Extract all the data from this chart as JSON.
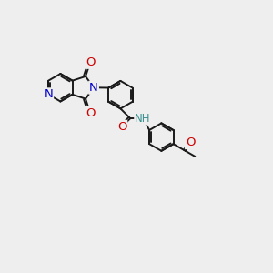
{
  "bg_color": "#eeeeee",
  "bond_color": "#1a1a1a",
  "bond_width": 1.4,
  "dbo": 0.07,
  "atom_colors": {
    "N_blue": "#0000cc",
    "N_teal": "#3a9090",
    "O": "#cc0000",
    "C": "#1a1a1a"
  },
  "font_size": 8.5,
  "fig_size": [
    3.0,
    3.0
  ],
  "dpi": 100,
  "xlim": [
    0,
    10
  ],
  "ylim": [
    0,
    10
  ]
}
